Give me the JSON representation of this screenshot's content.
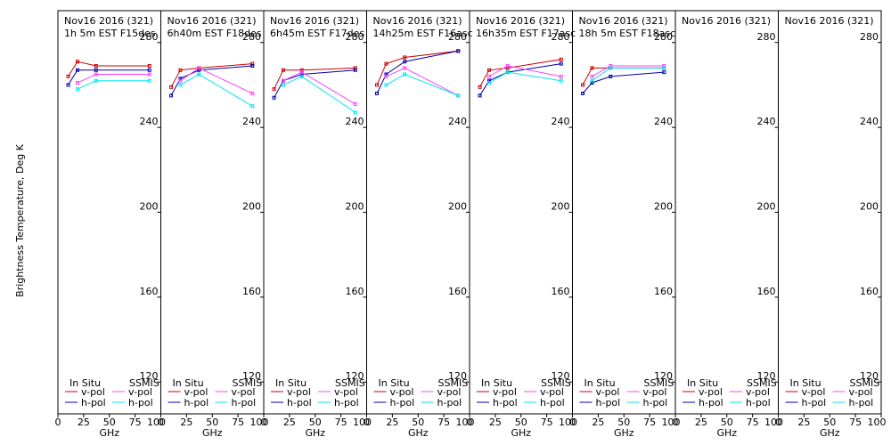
{
  "chart_data": {
    "type": "line",
    "ylabel": "Brightness Temperature, Deg K",
    "xlabel": "GHz",
    "xlim": [
      0,
      100
    ],
    "ylim": [
      105,
      295
    ],
    "x_ticks": [
      "0",
      "25",
      "50",
      "75",
      "100"
    ],
    "y_ticks": [
      120,
      160,
      200,
      240,
      280
    ],
    "legend": {
      "in_situ_header": "In Situ",
      "ssmis_header": "SSMIS",
      "v_pol": "v-pol",
      "h_pol": "h-pol"
    },
    "colors": {
      "in_situ_v": "#cc0000",
      "in_situ_h": "#0000aa",
      "ssmis_v": "#ff44ff",
      "ssmis_h": "#00e5ee"
    },
    "panels": [
      {
        "title_line1": "Nov16 2016 (321)",
        "title_line2": "1h 5m  EST F15des",
        "series": [
          {
            "name": "In Situ v-pol",
            "x": [
              10,
              19,
              37,
              89
            ],
            "y": [
              264,
              271,
              269,
              269
            ]
          },
          {
            "name": "In Situ h-pol",
            "x": [
              10,
              19,
              37,
              89
            ],
            "y": [
              260,
              267,
              267,
              267
            ]
          },
          {
            "name": "SSMIS v-pol",
            "x": [
              19,
              37,
              89
            ],
            "y": [
              261,
              265,
              265
            ]
          },
          {
            "name": "SSMIS h-pol",
            "x": [
              19,
              37,
              89
            ],
            "y": [
              258,
              262,
              262
            ]
          }
        ]
      },
      {
        "title_line1": "Nov16 2016 (321)",
        "title_line2": "6h40m  EST F18des",
        "series": [
          {
            "name": "In Situ v-pol",
            "x": [
              10,
              19,
              37,
              89
            ],
            "y": [
              259,
              267,
              268,
              270
            ]
          },
          {
            "name": "In Situ h-pol",
            "x": [
              10,
              19,
              37,
              89
            ],
            "y": [
              255,
              263,
              267,
              269
            ]
          },
          {
            "name": "SSMIS v-pol",
            "x": [
              19,
              37,
              89
            ],
            "y": [
              262,
              268,
              256
            ]
          },
          {
            "name": "SSMIS h-pol",
            "x": [
              19,
              37,
              89
            ],
            "y": [
              260,
              265,
              250
            ]
          }
        ]
      },
      {
        "title_line1": "Nov16 2016 (321)",
        "title_line2": "6h45m  EST F17des",
        "series": [
          {
            "name": "In Situ v-pol",
            "x": [
              10,
              19,
              37,
              89
            ],
            "y": [
              258,
              267,
              267,
              268
            ]
          },
          {
            "name": "In Situ h-pol",
            "x": [
              10,
              19,
              37,
              89
            ],
            "y": [
              254,
              262,
              265,
              267
            ]
          },
          {
            "name": "SSMIS v-pol",
            "x": [
              19,
              37,
              89
            ],
            "y": [
              262,
              266,
              251
            ]
          },
          {
            "name": "SSMIS h-pol",
            "x": [
              19,
              37,
              89
            ],
            "y": [
              260,
              264,
              247
            ]
          }
        ]
      },
      {
        "title_line1": "Nov16 2016 (321)",
        "title_line2": "14h25m  EST F16asc",
        "series": [
          {
            "name": "In Situ v-pol",
            "x": [
              10,
              19,
              37,
              89
            ],
            "y": [
              260,
              270,
              273,
              276
            ]
          },
          {
            "name": "In Situ h-pol",
            "x": [
              10,
              19,
              37,
              89
            ],
            "y": [
              256,
              265,
              271,
              276
            ]
          },
          {
            "name": "SSMIS v-pol",
            "x": [
              19,
              37,
              89
            ],
            "y": [
              264,
              268,
              255
            ]
          },
          {
            "name": "SSMIS h-pol",
            "x": [
              19,
              37,
              89
            ],
            "y": [
              260,
              265,
              255
            ]
          }
        ]
      },
      {
        "title_line1": "Nov16 2016 (321)",
        "title_line2": "16h35m  EST F17asc",
        "series": [
          {
            "name": "In Situ v-pol",
            "x": [
              10,
              19,
              37,
              89
            ],
            "y": [
              259,
              267,
              268,
              272
            ]
          },
          {
            "name": "In Situ h-pol",
            "x": [
              10,
              19,
              37,
              89
            ],
            "y": [
              255,
              262,
              266,
              270
            ]
          },
          {
            "name": "SSMIS v-pol",
            "x": [
              19,
              37,
              89
            ],
            "y": [
              264,
              269,
              264
            ]
          },
          {
            "name": "SSMIS h-pol",
            "x": [
              19,
              37,
              89
            ],
            "y": [
              261,
              266,
              262
            ]
          }
        ]
      },
      {
        "title_line1": "Nov16 2016 (321)",
        "title_line2": "18h 5m  EST F18asc",
        "series": [
          {
            "name": "In Situ v-pol",
            "x": [
              10,
              19,
              37,
              89
            ],
            "y": [
              260,
              268,
              268,
              268
            ]
          },
          {
            "name": "In Situ h-pol",
            "x": [
              10,
              19,
              37,
              89
            ],
            "y": [
              256,
              261,
              264,
              266
            ]
          },
          {
            "name": "SSMIS v-pol",
            "x": [
              19,
              37,
              89
            ],
            "y": [
              264,
              269,
              269
            ]
          },
          {
            "name": "SSMIS h-pol",
            "x": [
              19,
              37,
              89
            ],
            "y": [
              262,
              268,
              268
            ]
          }
        ]
      },
      {
        "title_line1": "Nov16 2016 (321)",
        "title_line2": "",
        "series": []
      },
      {
        "title_line1": "Nov16 2016 (321)",
        "title_line2": "",
        "series": []
      }
    ]
  }
}
